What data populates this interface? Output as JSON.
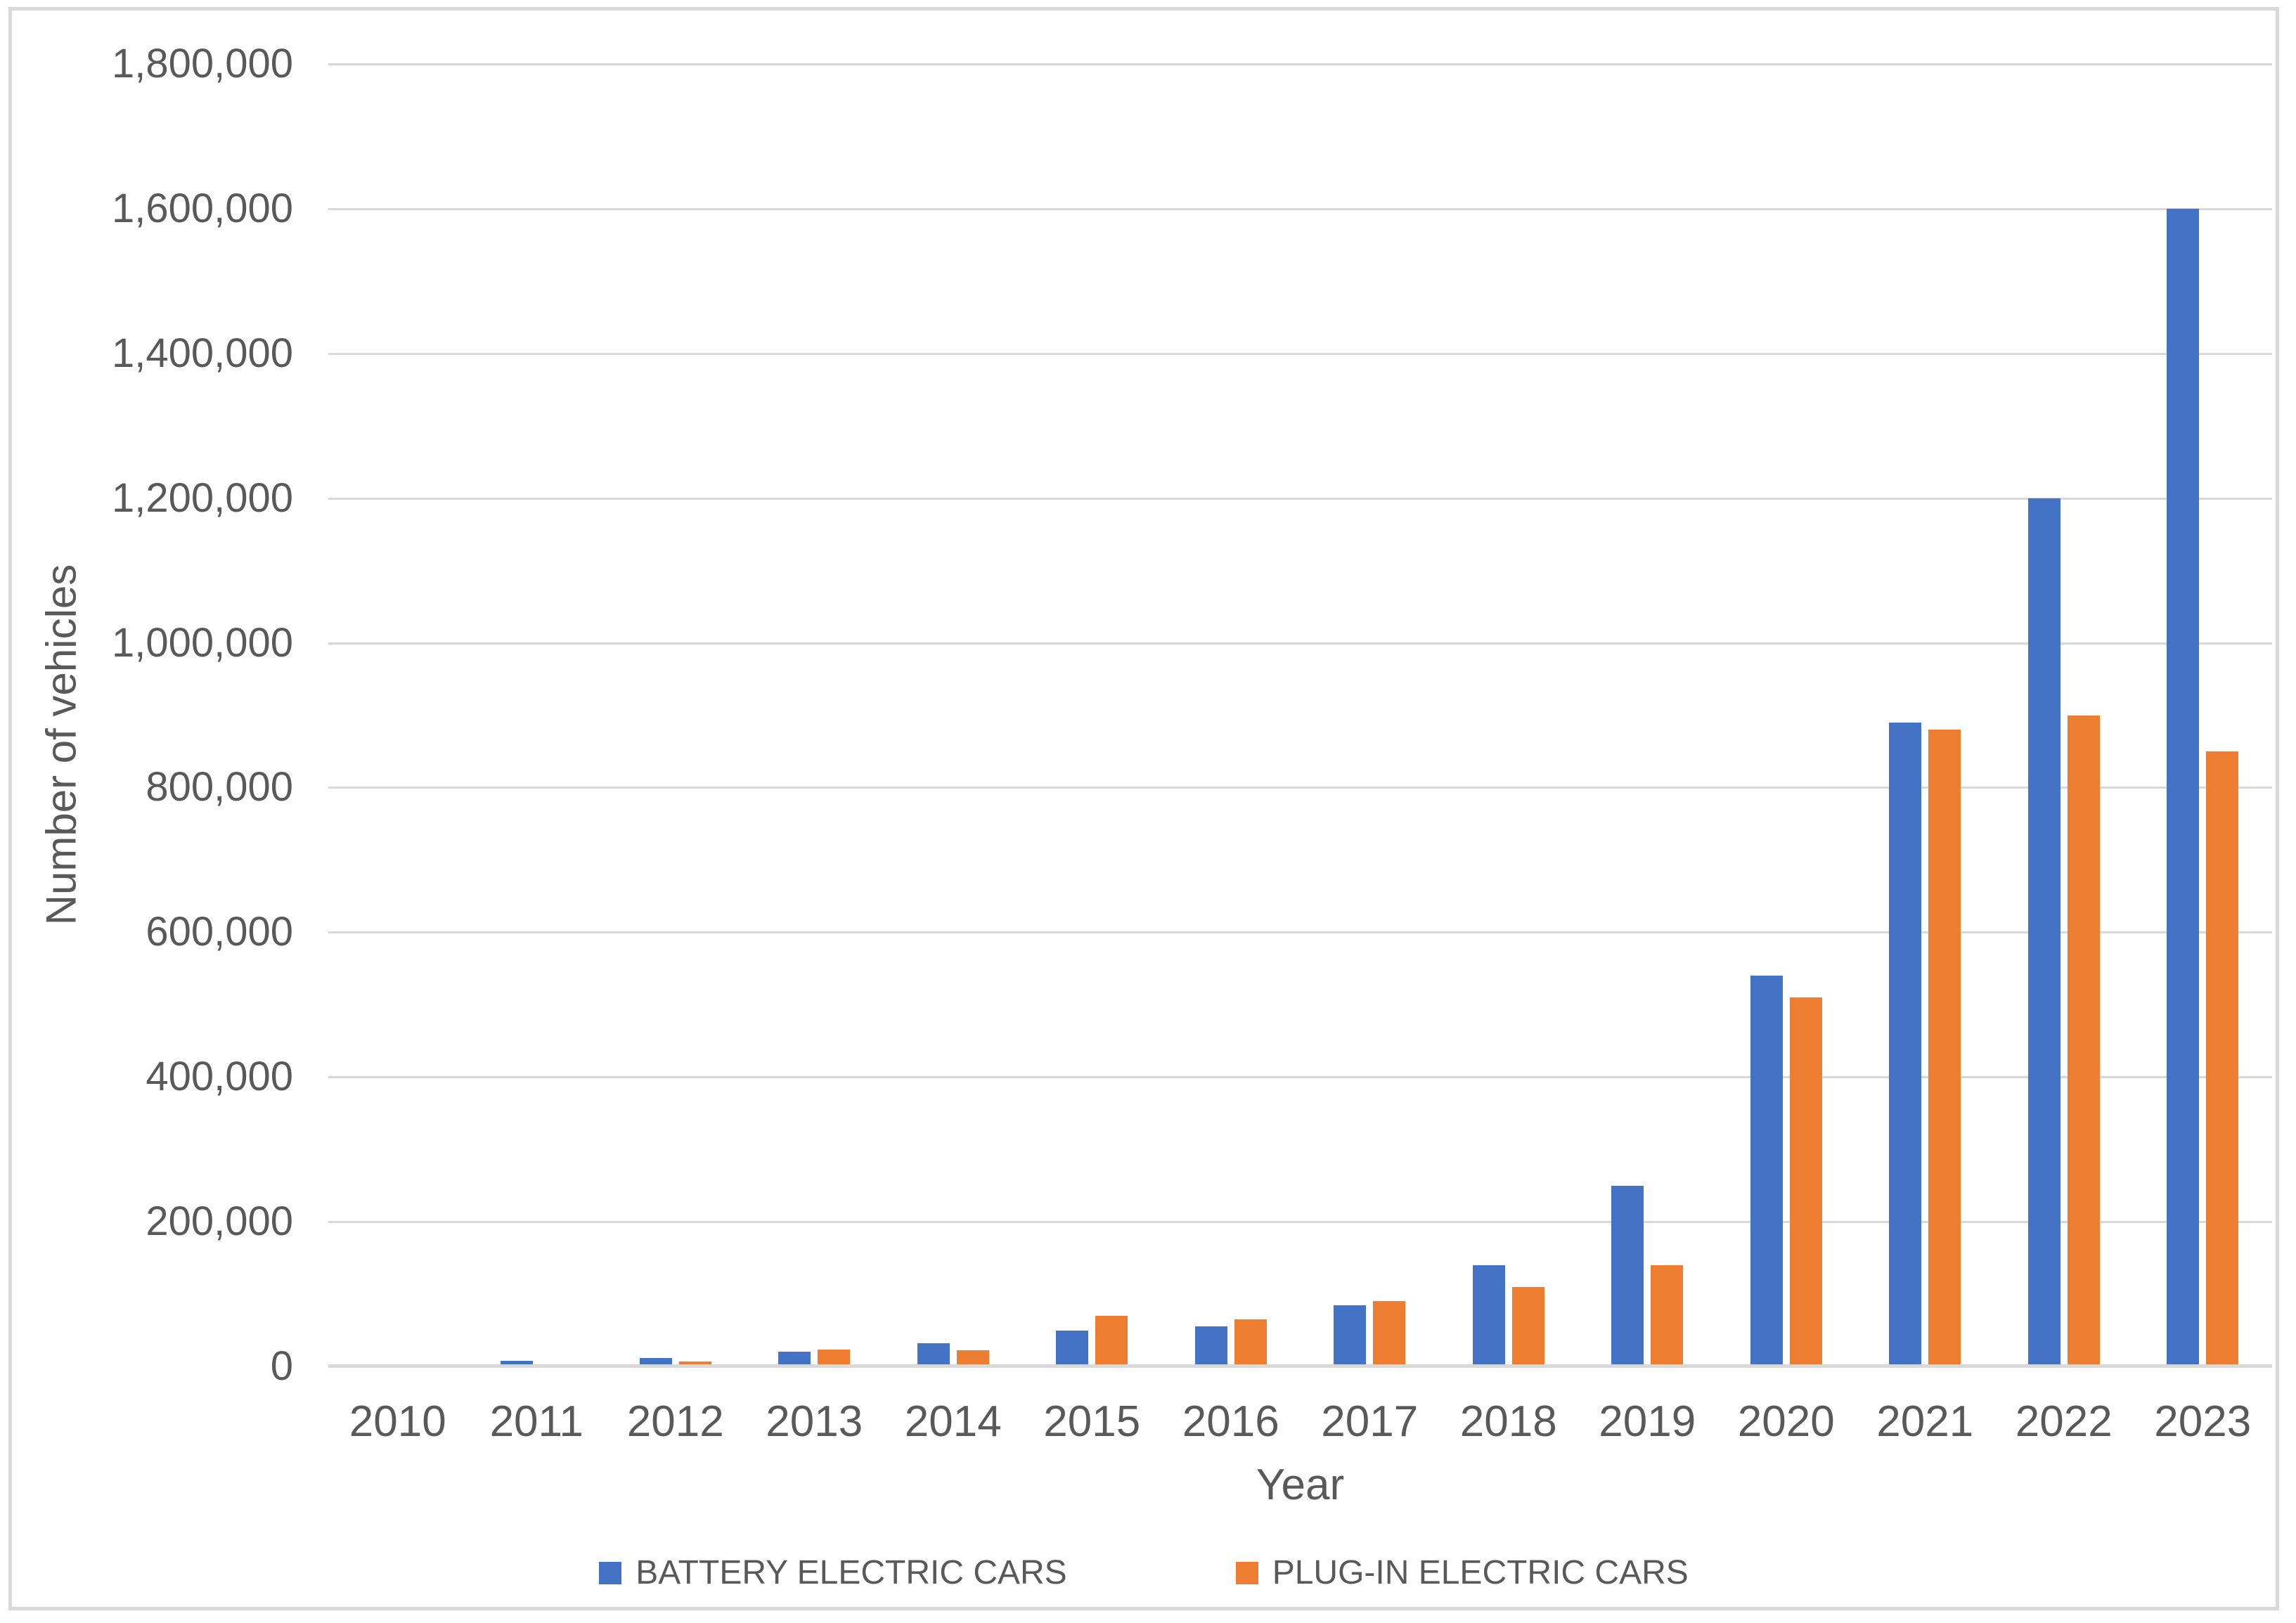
{
  "chart_data": {
    "type": "bar",
    "title": "",
    "categories": [
      "2010",
      "2011",
      "2012",
      "2013",
      "2014",
      "2015",
      "2016",
      "2017",
      "2018",
      "2019",
      "2020",
      "2021",
      "2022",
      "2023"
    ],
    "series": [
      {
        "name": "BATTERY ELECTRIC CARS",
        "color": "#4472C4",
        "values": [
          0,
          8000,
          12000,
          20000,
          32000,
          50000,
          55000,
          85000,
          140000,
          250000,
          540000,
          890000,
          1200000,
          1600000
        ]
      },
      {
        "name": "PLUG-IN ELECTRIC CARS",
        "color": "#ED7D31",
        "values": [
          0,
          0,
          7000,
          23000,
          22000,
          70000,
          65000,
          90000,
          110000,
          140000,
          510000,
          880000,
          900000,
          850000
        ]
      }
    ],
    "xlabel": "Year",
    "ylabel": "Number of vehicles",
    "ylim": [
      0,
      1800000
    ],
    "ytick_step": 200000,
    "yticks": [
      "1,800,000",
      "1,600,000",
      "1,400,000",
      "1,200,000",
      "1,000,000",
      "800,000",
      "600,000",
      "400,000",
      "200,000",
      "0"
    ],
    "grid": true,
    "legend_position": "bottom"
  },
  "colors": {
    "gridline": "#D9D9D9",
    "axis_line": "#D9D9D9",
    "text": "#595959",
    "frame_border": "#D9D9D9",
    "background": "#FFFFFF"
  }
}
